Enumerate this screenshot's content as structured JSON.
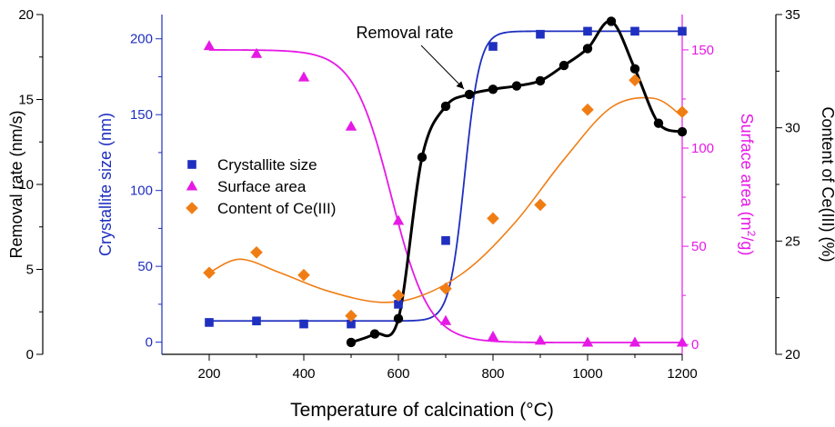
{
  "chart_data": {
    "type": "scatter",
    "xlabel": "Temperature of calcination (°C)",
    "xlim": [
      100,
      1200
    ],
    "xticks": [
      200,
      300,
      400,
      500,
      600,
      700,
      800,
      900,
      1000,
      1100,
      1200
    ],
    "xtick_labels": [
      "200",
      "400",
      "600",
      "800",
      "1000",
      "1200"
    ],
    "axes": [
      {
        "id": "removal",
        "label": "Removal rate (nm/s)",
        "side": "left-outer",
        "ylim": [
          0,
          20
        ],
        "ticks": [
          0,
          5,
          10,
          15,
          20
        ],
        "color": "#000000"
      },
      {
        "id": "crystal",
        "label": "Crystallite size (nm)",
        "side": "left-inner",
        "ylim": [
          -8,
          216
        ],
        "ticks": [
          0,
          50,
          100,
          150,
          200
        ],
        "color": "#1f2fbf"
      },
      {
        "id": "surface",
        "label_main": "Surface area (m",
        "label_sup": "2",
        "label_tail": "/g)",
        "side": "right-inner",
        "ylim": [
          -5,
          168
        ],
        "ticks": [
          0,
          50,
          100,
          150
        ],
        "color": "#e619e6"
      },
      {
        "id": "ce",
        "label": "Content of Ce(III) (%)",
        "side": "right-outer",
        "ylim": [
          20,
          35
        ],
        "ticks": [
          20,
          25,
          30,
          35
        ],
        "color": "#000000"
      }
    ],
    "series": [
      {
        "name": "Removal rate",
        "axis": "removal",
        "marker": "circle",
        "color": "#000000",
        "x": [
          500,
          550,
          600,
          650,
          700,
          750,
          800,
          850,
          900,
          950,
          1000,
          1050,
          1100,
          1150,
          1200
        ],
        "y": [
          0.7,
          1.2,
          2.1,
          11.6,
          14.6,
          15.3,
          15.6,
          15.8,
          16.1,
          17.0,
          18.0,
          19.6,
          16.8,
          13.6,
          13.1
        ]
      },
      {
        "name": "Crystallite size",
        "axis": "crystal",
        "marker": "square",
        "color": "#1f2fbf",
        "x": [
          200,
          300,
          400,
          500,
          600,
          700,
          800,
          900,
          1000,
          1100,
          1200
        ],
        "y": [
          13,
          14,
          12,
          12,
          25,
          67,
          195,
          203,
          205,
          205,
          205
        ]
      },
      {
        "name": "Surface area",
        "axis": "surface",
        "marker": "triangle",
        "color": "#e619e6",
        "x": [
          200,
          300,
          400,
          500,
          600,
          700,
          800,
          900,
          1000,
          1100,
          1200
        ],
        "y": [
          152,
          148,
          136,
          111,
          63,
          12,
          4,
          2,
          1,
          1,
          1
        ]
      },
      {
        "name": "Content of Ce(III)",
        "axis": "ce",
        "marker": "diamond",
        "color": "#f07d14",
        "x": [
          200,
          300,
          400,
          500,
          600,
          700,
          800,
          900,
          1000,
          1100,
          1200
        ],
        "y": [
          23.6,
          24.5,
          23.5,
          21.7,
          22.6,
          22.9,
          26.0,
          26.6,
          30.8,
          32.1,
          30.7
        ]
      }
    ],
    "annotation": {
      "text": "Removal rate",
      "points_to_x": 750,
      "points_to_y": 15.3
    },
    "legend": {
      "placement": "center-left",
      "entries": [
        "Crystallite size",
        "Surface area",
        "Content of Ce(III)"
      ]
    },
    "grid": false
  }
}
